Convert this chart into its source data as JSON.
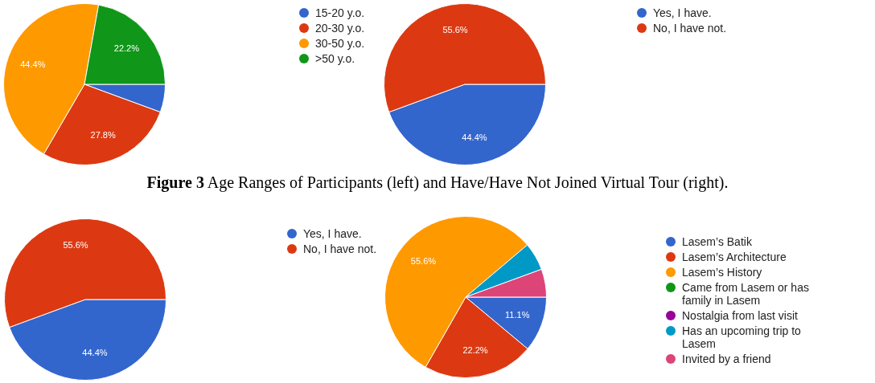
{
  "chart_data": [
    {
      "type": "pie",
      "categories": [
        "15-20 y.o.",
        "20-30 y.o.",
        "30-50 y.o.",
        ">50 y.o."
      ],
      "values": [
        5.6,
        27.8,
        44.4,
        22.2
      ],
      "colors": [
        "#3366cc",
        "#dc3912",
        "#ff9900",
        "#109618"
      ],
      "value_labels": [
        null,
        "27.8%",
        "44.4%",
        "22.2%"
      ],
      "legend": "right",
      "annotations": [
        "Figure 3 Age Ranges of Participants (left) and Have/Have Not Joined Virtual Tour (right)."
      ]
    },
    {
      "type": "pie",
      "categories": [
        "Yes, I have.",
        "No, I have not."
      ],
      "values": [
        44.4,
        55.6
      ],
      "colors": [
        "#3366cc",
        "#dc3912"
      ],
      "value_labels": [
        "44.4%",
        "55.6%"
      ],
      "legend": "right"
    },
    {
      "type": "pie",
      "categories": [
        "Yes, I have.",
        "No, I have not."
      ],
      "values": [
        44.4,
        55.6
      ],
      "colors": [
        "#3366cc",
        "#dc3912"
      ],
      "value_labels": [
        "44.4%",
        "55.6%"
      ],
      "legend": "right"
    },
    {
      "type": "pie",
      "categories": [
        "Lasem’s Batik",
        "Lasem’s Architecture",
        "Lasem’s History",
        "Came from Lasem or has family in Lasem",
        "Nostalgia from last visit",
        "Has an upcoming trip to Lasem",
        "Invited by a friend"
      ],
      "values": [
        11.1,
        22.2,
        55.6,
        0,
        0,
        5.6,
        5.6
      ],
      "colors": [
        "#3366cc",
        "#dc3912",
        "#ff9900",
        "#109618",
        "#990099",
        "#0099c6",
        "#dd4477"
      ],
      "value_labels": [
        "11.1%",
        "22.2%",
        "55.6%",
        null,
        null,
        null,
        null
      ],
      "legend": "right"
    }
  ]
}
